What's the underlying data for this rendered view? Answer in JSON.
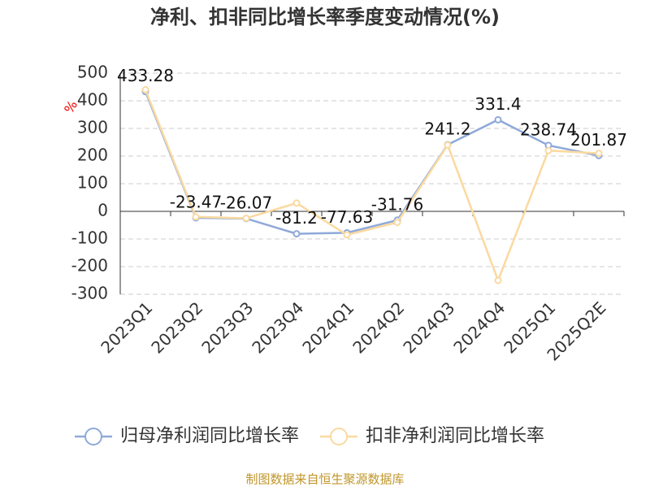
{
  "chart_data": {
    "type": "line",
    "title": "净利、扣非同比增长率季度变动情况(%)",
    "ylabel": "%",
    "categories": [
      "2023Q1",
      "2023Q2",
      "2023Q3",
      "2023Q4",
      "2024Q1",
      "2024Q2",
      "2024Q3",
      "2024Q4",
      "2025Q1",
      "2025Q2E"
    ],
    "series": [
      {
        "name": "归母净利润同比增长率",
        "color": "#8fa9d9",
        "data_labels": true,
        "values": [
          433.28,
          -23.47,
          -26.07,
          -81.2,
          -77.63,
          -31.76,
          241.2,
          331.4,
          238.74,
          201.87
        ]
      },
      {
        "name": "扣非净利润同比增长率",
        "color": "#fad9a0",
        "data_labels": false,
        "values": [
          440,
          -20,
          -25,
          30,
          -85,
          -40,
          240,
          -250,
          220,
          210
        ]
      }
    ],
    "ylim": [
      -300,
      500
    ],
    "yticks": [
      -300,
      -200,
      -100,
      0,
      100,
      200,
      300,
      400,
      500
    ],
    "grid": true,
    "source": "制图数据来自恒生聚源数据库"
  }
}
